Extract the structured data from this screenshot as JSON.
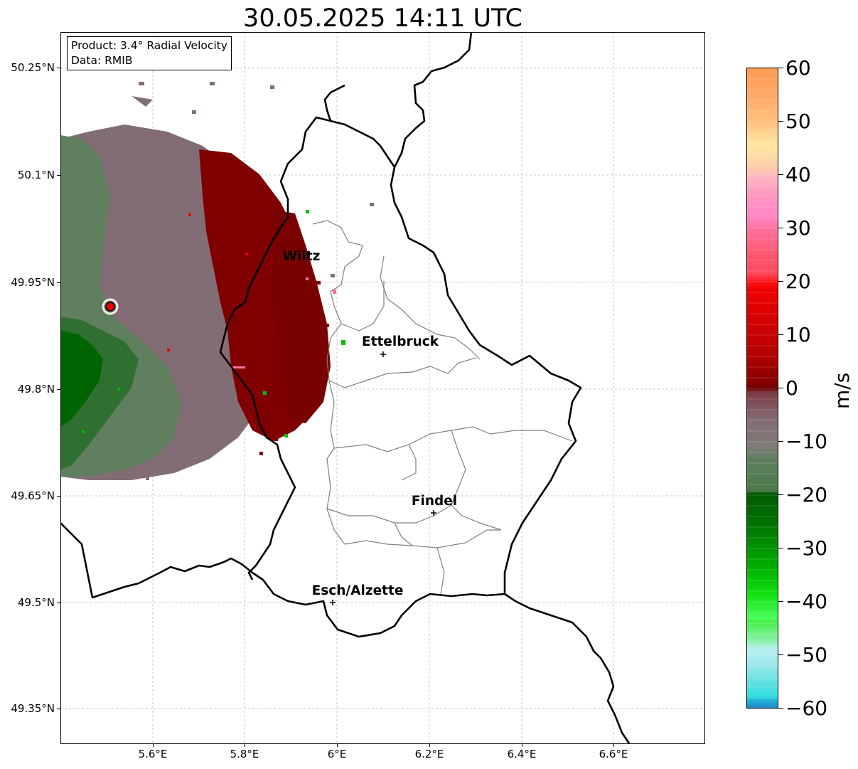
{
  "title": "30.05.2025 14:11 UTC",
  "info": {
    "product": "Product: 3.4° Radial Velocity",
    "data": "Data: RMIB"
  },
  "axes": {
    "y_labels": [
      "50.25°N",
      "50.1°N",
      "49.95°N",
      "49.8°N",
      "49.65°N",
      "49.5°N",
      "49.35°N"
    ],
    "x_labels": [
      "5.6°E",
      "5.8°E",
      "6°E",
      "6.2°E",
      "6.4°E",
      "6.6°E"
    ]
  },
  "cities": [
    {
      "name": "Wiltz"
    },
    {
      "name": "Ettelbruck"
    },
    {
      "name": "Findel"
    },
    {
      "name": "Esch/Alzette"
    }
  ],
  "colorbar": {
    "unit": "m/s",
    "labels": [
      "60",
      "50",
      "40",
      "30",
      "20",
      "10",
      "0",
      "−10",
      "−20",
      "−30",
      "−40",
      "−50",
      "−60"
    ]
  },
  "colors": {
    "approaching_dark": "#006400",
    "neutral_green": "#5f7f5f",
    "neutral_mauve": "#836d75",
    "receding_dark_red": "#800000",
    "receding_red": "#e80000",
    "border": "#000000",
    "canton_lines": "#808080"
  }
}
